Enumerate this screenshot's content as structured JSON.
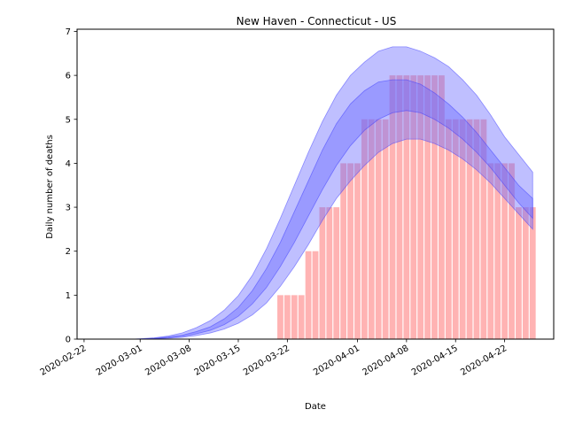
{
  "chart_data": {
    "type": "bar",
    "title": "New Haven - Connecticut - US",
    "xlabel": "Date",
    "ylabel": "Daily number of deaths",
    "x_range": [
      "2020-02-21",
      "2020-04-29"
    ],
    "ylim": [
      0,
      7.05
    ],
    "y_ticks": [
      0,
      1,
      2,
      3,
      4,
      5,
      6,
      7
    ],
    "x_ticks": [
      "2020-02-22",
      "2020-03-01",
      "2020-03-08",
      "2020-03-15",
      "2020-03-22",
      "2020-04-01",
      "2020-04-08",
      "2020-04-15",
      "2020-04-22"
    ],
    "grid": false,
    "bar_color": "#ff9999",
    "band_color": "#6666ff",
    "series": [
      {
        "name": "",
        "kind": "bar",
        "x": [
          "2020-03-21",
          "2020-03-22",
          "2020-03-23",
          "2020-03-24",
          "2020-03-25",
          "2020-03-26",
          "2020-03-27",
          "2020-03-28",
          "2020-03-29",
          "2020-03-30",
          "2020-03-31",
          "2020-04-01",
          "2020-04-02",
          "2020-04-03",
          "2020-04-04",
          "2020-04-05",
          "2020-04-06",
          "2020-04-07",
          "2020-04-08",
          "2020-04-09",
          "2020-04-10",
          "2020-04-11",
          "2020-04-12",
          "2020-04-13",
          "2020-04-14",
          "2020-04-15",
          "2020-04-16",
          "2020-04-17",
          "2020-04-18",
          "2020-04-19",
          "2020-04-20",
          "2020-04-21",
          "2020-04-22",
          "2020-04-23",
          "2020-04-24",
          "2020-04-25",
          "2020-04-26"
        ],
        "values": [
          1,
          1,
          1,
          1,
          2,
          2,
          3,
          3,
          3,
          4,
          4,
          4,
          5,
          5,
          5,
          5,
          6,
          6,
          6,
          6,
          6,
          6,
          6,
          6,
          5,
          5,
          5,
          5,
          5,
          5,
          4,
          4,
          4,
          4,
          3,
          3,
          3
        ]
      }
    ],
    "bands": [
      {
        "name": "outer",
        "x": [
          "2020-02-29",
          "2020-03-01",
          "2020-03-03",
          "2020-03-05",
          "2020-03-07",
          "2020-03-09",
          "2020-03-11",
          "2020-03-13",
          "2020-03-15",
          "2020-03-17",
          "2020-03-19",
          "2020-03-21",
          "2020-03-23",
          "2020-03-25",
          "2020-03-27",
          "2020-03-29",
          "2020-03-31",
          "2020-04-02",
          "2020-04-04",
          "2020-04-06",
          "2020-04-08",
          "2020-04-10",
          "2020-04-12",
          "2020-04-14",
          "2020-04-16",
          "2020-04-18",
          "2020-04-20",
          "2020-04-22",
          "2020-04-24",
          "2020-04-26"
        ],
        "lower": [
          0,
          0,
          0.01,
          0.02,
          0.04,
          0.08,
          0.14,
          0.23,
          0.36,
          0.55,
          0.82,
          1.2,
          1.65,
          2.15,
          2.7,
          3.2,
          3.6,
          3.95,
          4.25,
          4.45,
          4.55,
          4.55,
          4.45,
          4.3,
          4.1,
          3.85,
          3.55,
          3.2,
          2.85,
          2.5
        ],
        "upper": [
          0,
          0.01,
          0.03,
          0.07,
          0.14,
          0.26,
          0.42,
          0.66,
          0.99,
          1.45,
          2.05,
          2.75,
          3.5,
          4.25,
          4.95,
          5.55,
          6.0,
          6.3,
          6.55,
          6.65,
          6.65,
          6.55,
          6.4,
          6.2,
          5.9,
          5.55,
          5.1,
          4.6,
          4.2,
          3.8
        ]
      },
      {
        "name": "inner",
        "x": [
          "2020-02-29",
          "2020-03-01",
          "2020-03-03",
          "2020-03-05",
          "2020-03-07",
          "2020-03-09",
          "2020-03-11",
          "2020-03-13",
          "2020-03-15",
          "2020-03-17",
          "2020-03-19",
          "2020-03-21",
          "2020-03-23",
          "2020-03-25",
          "2020-03-27",
          "2020-03-29",
          "2020-03-31",
          "2020-04-02",
          "2020-04-04",
          "2020-04-06",
          "2020-04-08",
          "2020-04-10",
          "2020-04-12",
          "2020-04-14",
          "2020-04-16",
          "2020-04-18",
          "2020-04-20",
          "2020-04-22",
          "2020-04-24",
          "2020-04-26"
        ],
        "lower": [
          0,
          0,
          0.01,
          0.03,
          0.06,
          0.12,
          0.2,
          0.33,
          0.52,
          0.8,
          1.17,
          1.65,
          2.2,
          2.8,
          3.4,
          3.95,
          4.4,
          4.75,
          5.0,
          5.15,
          5.2,
          5.15,
          5.0,
          4.8,
          4.55,
          4.25,
          3.9,
          3.5,
          3.1,
          2.75
        ],
        "upper": [
          0,
          0,
          0.02,
          0.05,
          0.09,
          0.17,
          0.28,
          0.46,
          0.72,
          1.1,
          1.6,
          2.2,
          2.9,
          3.6,
          4.3,
          4.9,
          5.35,
          5.65,
          5.85,
          5.9,
          5.9,
          5.8,
          5.6,
          5.35,
          5.05,
          4.7,
          4.3,
          3.9,
          3.5,
          3.2
        ]
      }
    ]
  }
}
